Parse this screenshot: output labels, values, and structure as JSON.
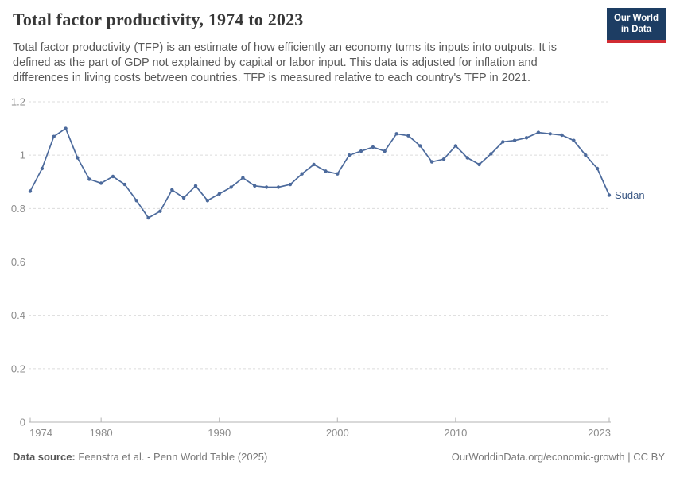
{
  "header": {
    "title": "Total factor productivity, 1974 to 2023",
    "subtitle": "Total factor productivity (TFP) is an estimate of how efficiently an economy turns its inputs into outputs. It is defined as the part of GDP not explained by capital or labor input. This data is adjusted for inflation and differences in living costs between countries. TFP is measured relative to each country's TFP in 2021.",
    "logo": {
      "line1": "Our World",
      "line2": "in Data",
      "bg_color": "#1d3d63",
      "accent_color": "#d12b32"
    }
  },
  "chart_data": {
    "type": "line",
    "title": "Total factor productivity, 1974 to 2023",
    "xlabel": "",
    "ylabel": "",
    "xlim": [
      1974,
      2023
    ],
    "ylim": [
      0,
      1.2
    ],
    "yticks": [
      0,
      0.2,
      0.4,
      0.6,
      0.8,
      1,
      1.2
    ],
    "ytick_labels": [
      "0",
      "0.2",
      "0.4",
      "0.6",
      "0.8",
      "1",
      "1.2"
    ],
    "xticks": [
      1974,
      1980,
      1990,
      2000,
      2010,
      2023
    ],
    "xtick_labels": [
      "1974",
      "1980",
      "1990",
      "2000",
      "2010",
      "2023"
    ],
    "grid": "horizontal-dashed",
    "legend_position": "end-of-line-label",
    "grid_color": "#dcdcdc",
    "axis_color": "#b3b3b3",
    "axis_label_color": "#8c8c8c",
    "series": [
      {
        "name": "Sudan",
        "color": "#4c6a9c",
        "label_color": "#3d5a86",
        "x": [
          1974,
          1975,
          1976,
          1977,
          1978,
          1979,
          1980,
          1981,
          1982,
          1983,
          1984,
          1985,
          1986,
          1987,
          1988,
          1989,
          1990,
          1991,
          1992,
          1993,
          1994,
          1995,
          1996,
          1997,
          1998,
          1999,
          2000,
          2001,
          2002,
          2003,
          2004,
          2005,
          2006,
          2007,
          2008,
          2009,
          2010,
          2011,
          2012,
          2013,
          2014,
          2015,
          2016,
          2017,
          2018,
          2019,
          2020,
          2021,
          2022,
          2023
        ],
        "values": [
          0.865,
          0.95,
          1.07,
          1.1,
          0.99,
          0.91,
          0.895,
          0.92,
          0.89,
          0.83,
          0.765,
          0.79,
          0.87,
          0.84,
          0.885,
          0.83,
          0.855,
          0.88,
          0.915,
          0.885,
          0.88,
          0.88,
          0.89,
          0.93,
          0.965,
          0.94,
          0.93,
          1.0,
          1.015,
          1.03,
          1.015,
          1.08,
          1.073,
          1.035,
          0.975,
          0.985,
          1.035,
          0.99,
          0.965,
          1.005,
          1.05,
          1.055,
          1.065,
          1.085,
          1.08,
          1.075,
          1.055,
          1.0,
          0.95,
          0.85
        ]
      }
    ]
  },
  "footer": {
    "source_label": "Data source:",
    "source_text": "Feenstra et al. - Penn World Table (2025)",
    "license_text": "OurWorldinData.org/economic-growth | CC BY"
  }
}
